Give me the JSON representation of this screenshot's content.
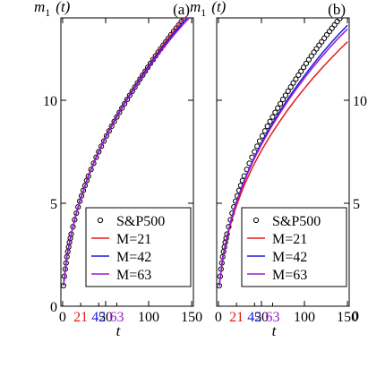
{
  "chart_data": [
    {
      "type": "line",
      "panel_label": "(a)",
      "ylabel_parts": {
        "main": "m",
        "sub": "1",
        "arg": "(t)"
      },
      "xlabel": "t",
      "xlim": [
        -2,
        152
      ],
      "ylim": [
        0,
        14
      ],
      "xticks": [
        0,
        50,
        100,
        150
      ],
      "yticks": [
        0,
        5,
        10
      ],
      "colored_xticks": [
        {
          "label": "21",
          "value": 21,
          "color": "#e41a1c"
        },
        {
          "label": "42",
          "value": 42,
          "color": "#1a1ae4"
        },
        {
          "label": "63",
          "value": 63,
          "color": "#9a1ad0"
        }
      ],
      "series": [
        {
          "name": "S&P500",
          "style": "markers",
          "color": "#000000",
          "x": [
            1,
            2,
            3,
            4,
            5,
            6,
            7,
            8,
            9,
            10,
            12,
            14,
            16,
            18,
            20,
            22,
            24,
            26,
            28,
            30,
            33,
            36,
            39,
            42,
            45,
            48,
            51,
            54,
            57,
            60,
            63,
            66,
            69,
            72,
            75,
            78,
            81,
            84,
            87,
            90,
            93,
            96,
            99,
            102,
            105,
            108,
            111,
            114,
            117,
            120,
            123,
            126,
            129,
            132,
            135,
            138,
            141,
            144,
            147,
            150
          ],
          "y": [
            1.0,
            1.45,
            1.8,
            2.1,
            2.4,
            2.65,
            2.88,
            3.1,
            3.3,
            3.5,
            3.86,
            4.2,
            4.52,
            4.82,
            5.1,
            5.36,
            5.62,
            5.86,
            6.1,
            6.32,
            6.64,
            6.94,
            7.23,
            7.5,
            7.77,
            8.02,
            8.27,
            8.51,
            8.74,
            8.97,
            9.19,
            9.41,
            9.62,
            9.83,
            10.04,
            10.24,
            10.44,
            10.64,
            10.84,
            11.03,
            11.22,
            11.41,
            11.6,
            11.79,
            11.97,
            12.15,
            12.33,
            12.5,
            12.67,
            12.84,
            13.01,
            13.18,
            13.34,
            13.5,
            13.66,
            13.82,
            13.97,
            14.1,
            14.22,
            14.32
          ]
        },
        {
          "name": "M=21",
          "style": "line",
          "color": "#e41a1c",
          "x": [
            1,
            5,
            10,
            15,
            20,
            30,
            40,
            50,
            60,
            70,
            80,
            90,
            100,
            110,
            120,
            130,
            140,
            150
          ],
          "y": [
            1.02,
            2.44,
            3.52,
            4.38,
            5.12,
            6.35,
            7.36,
            8.24,
            9.03,
            9.75,
            10.43,
            11.08,
            11.7,
            12.3,
            12.87,
            13.41,
            13.94,
            14.4
          ]
        },
        {
          "name": "M=42",
          "style": "line",
          "color": "#1a1ae4",
          "x": [
            1,
            5,
            10,
            15,
            20,
            30,
            40,
            50,
            60,
            70,
            80,
            90,
            100,
            110,
            120,
            130,
            140,
            150
          ],
          "y": [
            1.0,
            2.42,
            3.5,
            4.36,
            5.1,
            6.32,
            7.33,
            8.21,
            9.0,
            9.72,
            10.4,
            11.04,
            11.65,
            12.23,
            12.78,
            13.3,
            13.8,
            14.25
          ]
        },
        {
          "name": "M=63",
          "style": "line",
          "color": "#9a1ad0",
          "x": [
            1,
            5,
            10,
            15,
            20,
            30,
            40,
            50,
            60,
            70,
            80,
            90,
            100,
            110,
            120,
            130,
            140,
            150
          ],
          "y": [
            1.0,
            2.4,
            3.48,
            4.34,
            5.08,
            6.3,
            7.3,
            8.18,
            8.96,
            9.68,
            10.35,
            10.98,
            11.58,
            12.15,
            12.69,
            13.2,
            13.68,
            14.12
          ]
        }
      ],
      "legend": {
        "placement": "bottom-right",
        "entries": [
          "S&P500",
          "M=21",
          "M=42",
          "M=63"
        ]
      }
    },
    {
      "type": "line",
      "panel_label": "(b)",
      "ylabel_parts": {
        "main": "m",
        "sub": "1",
        "arg": "(t)"
      },
      "xlabel": "t",
      "xlim": [
        -2,
        152
      ],
      "ylim": [
        0,
        14
      ],
      "xticks": [
        0,
        50,
        100,
        150
      ],
      "yticks": [
        0,
        5,
        10
      ],
      "colored_xticks": [
        {
          "label": "21",
          "value": 21,
          "color": "#e41a1c"
        },
        {
          "label": "42",
          "value": 42,
          "color": "#1a1ae4"
        },
        {
          "label": "63",
          "value": 63,
          "color": "#9a1ad0"
        }
      ],
      "series": [
        {
          "name": "S&P500",
          "style": "markers",
          "color": "#000000",
          "x": [
            1,
            2,
            3,
            4,
            5,
            6,
            7,
            8,
            9,
            10,
            12,
            14,
            16,
            18,
            20,
            22,
            24,
            26,
            28,
            30,
            33,
            36,
            39,
            42,
            45,
            48,
            51,
            54,
            57,
            60,
            63,
            66,
            69,
            72,
            75,
            78,
            81,
            84,
            87,
            90,
            93,
            96,
            99,
            102,
            105,
            108,
            111,
            114,
            117,
            120,
            123,
            126,
            129,
            132,
            135,
            138,
            141,
            144,
            147,
            150
          ],
          "y": [
            1.0,
            1.45,
            1.8,
            2.1,
            2.4,
            2.65,
            2.88,
            3.1,
            3.3,
            3.5,
            3.86,
            4.2,
            4.52,
            4.82,
            5.1,
            5.36,
            5.62,
            5.86,
            6.1,
            6.32,
            6.64,
            6.94,
            7.23,
            7.5,
            7.77,
            8.02,
            8.27,
            8.51,
            8.74,
            8.97,
            9.19,
            9.41,
            9.62,
            9.83,
            10.04,
            10.24,
            10.44,
            10.64,
            10.84,
            11.03,
            11.22,
            11.41,
            11.6,
            11.79,
            11.97,
            12.15,
            12.33,
            12.5,
            12.67,
            12.84,
            13.01,
            13.18,
            13.34,
            13.5,
            13.66,
            13.82,
            13.97,
            14.1,
            14.22,
            14.32
          ]
        },
        {
          "name": "M=21",
          "style": "line",
          "color": "#e41a1c",
          "x": [
            1,
            5,
            10,
            15,
            20,
            30,
            40,
            50,
            60,
            70,
            80,
            90,
            100,
            110,
            120,
            130,
            140,
            150
          ],
          "y": [
            0.98,
            2.3,
            3.3,
            4.1,
            4.78,
            5.88,
            6.78,
            7.56,
            8.26,
            8.9,
            9.5,
            10.06,
            10.58,
            11.08,
            11.55,
            12.0,
            12.43,
            12.84
          ]
        },
        {
          "name": "M=42",
          "style": "line",
          "color": "#1a1ae4",
          "x": [
            1,
            5,
            10,
            15,
            20,
            30,
            40,
            50,
            60,
            70,
            80,
            90,
            100,
            110,
            120,
            130,
            140,
            150
          ],
          "y": [
            0.99,
            2.36,
            3.4,
            4.24,
            4.96,
            6.12,
            7.08,
            7.92,
            8.68,
            9.37,
            10.02,
            10.62,
            11.2,
            11.74,
            12.26,
            12.75,
            13.21,
            13.64
          ]
        },
        {
          "name": "M=63",
          "style": "line",
          "color": "#9a1ad0",
          "x": [
            1,
            5,
            10,
            15,
            20,
            30,
            40,
            50,
            60,
            70,
            80,
            90,
            100,
            110,
            120,
            130,
            140,
            150
          ],
          "y": [
            0.99,
            2.34,
            3.37,
            4.2,
            4.92,
            6.07,
            7.02,
            7.85,
            8.6,
            9.28,
            9.92,
            10.52,
            11.08,
            11.61,
            12.11,
            12.59,
            13.04,
            13.46
          ]
        }
      ],
      "legend": {
        "placement": "bottom-right",
        "entries": [
          "S&P500",
          "M=21",
          "M=42",
          "M=63"
        ]
      }
    }
  ]
}
